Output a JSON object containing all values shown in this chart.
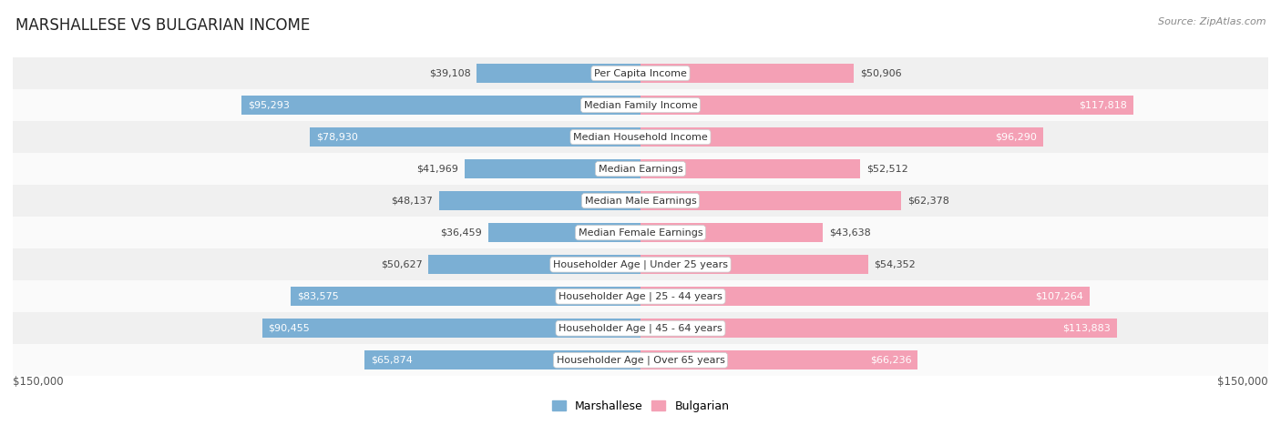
{
  "title": "MARSHALLESE VS BULGARIAN INCOME",
  "source": "Source: ZipAtlas.com",
  "categories": [
    "Per Capita Income",
    "Median Family Income",
    "Median Household Income",
    "Median Earnings",
    "Median Male Earnings",
    "Median Female Earnings",
    "Householder Age | Under 25 years",
    "Householder Age | 25 - 44 years",
    "Householder Age | 45 - 64 years",
    "Householder Age | Over 65 years"
  ],
  "marshallese_values": [
    39108,
    95293,
    78930,
    41969,
    48137,
    36459,
    50627,
    83575,
    90455,
    65874
  ],
  "bulgarian_values": [
    50906,
    117818,
    96290,
    52512,
    62378,
    43638,
    54352,
    107264,
    113883,
    66236
  ],
  "marshallese_labels": [
    "$39,108",
    "$95,293",
    "$78,930",
    "$41,969",
    "$48,137",
    "$36,459",
    "$50,627",
    "$83,575",
    "$90,455",
    "$65,874"
  ],
  "bulgarian_labels": [
    "$50,906",
    "$117,818",
    "$96,290",
    "$52,512",
    "$62,378",
    "$43,638",
    "$54,352",
    "$107,264",
    "$113,883",
    "$66,236"
  ],
  "marshallese_color": "#7bafd4",
  "bulgarian_color": "#f4a0b5",
  "bg_color": "#ffffff",
  "row_colors": [
    "#f0f0f0",
    "#fafafa"
  ],
  "max_value": 150000,
  "xlabel_left": "$150,000",
  "xlabel_right": "$150,000",
  "legend_marshallese": "Marshallese",
  "legend_bulgarian": "Bulgarian",
  "title_fontsize": 12,
  "source_fontsize": 8,
  "bar_height": 0.6,
  "label_inside_threshold_m": 55000,
  "label_inside_threshold_b": 65000
}
